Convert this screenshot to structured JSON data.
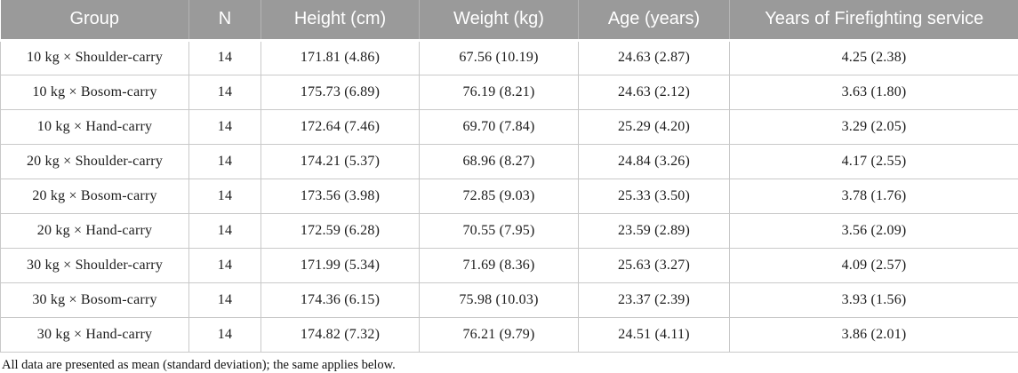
{
  "table": {
    "columns": [
      "Group",
      "N",
      "Height (cm)",
      "Weight (kg)",
      "Age (years)",
      "Years of Firefighting service"
    ],
    "rows": [
      [
        "10 kg × Shoulder-carry",
        "14",
        "171.81 (4.86)",
        "67.56 (10.19)",
        "24.63 (2.87)",
        "4.25 (2.38)"
      ],
      [
        "10 kg × Bosom-carry",
        "14",
        "175.73 (6.89)",
        "76.19 (8.21)",
        "24.63 (2.12)",
        "3.63 (1.80)"
      ],
      [
        "10 kg × Hand-carry",
        "14",
        "172.64 (7.46)",
        "69.70 (7.84)",
        "25.29 (4.20)",
        "3.29 (2.05)"
      ],
      [
        "20 kg × Shoulder-carry",
        "14",
        "174.21 (5.37)",
        "68.96 (8.27)",
        "24.84 (3.26)",
        "4.17 (2.55)"
      ],
      [
        "20 kg × Bosom-carry",
        "14",
        "173.56 (3.98)",
        "72.85 (9.03)",
        "25.33 (3.50)",
        "3.78 (1.76)"
      ],
      [
        "20 kg × Hand-carry",
        "14",
        "172.59 (6.28)",
        "70.55 (7.95)",
        "23.59 (2.89)",
        "3.56 (2.09)"
      ],
      [
        "30 kg × Shoulder-carry",
        "14",
        "171.99 (5.34)",
        "71.69 (8.36)",
        "25.63 (3.27)",
        "4.09 (2.57)"
      ],
      [
        "30 kg × Bosom-carry",
        "14",
        "174.36 (6.15)",
        "75.98 (10.03)",
        "23.37 (2.39)",
        "3.93 (1.56)"
      ],
      [
        "30 kg × Hand-carry",
        "14",
        "174.82 (7.32)",
        "76.21 (9.79)",
        "24.51 (4.11)",
        "3.86 (2.01)"
      ]
    ],
    "footnote": "All data are presented as mean (standard deviation); the same applies below."
  },
  "colors": {
    "header_background": "#9a9a9a",
    "header_text": "#ffffff",
    "header_divider": "#b4b4b4",
    "body_border": "#c9c9c9",
    "body_text": "#1c1c1c"
  }
}
